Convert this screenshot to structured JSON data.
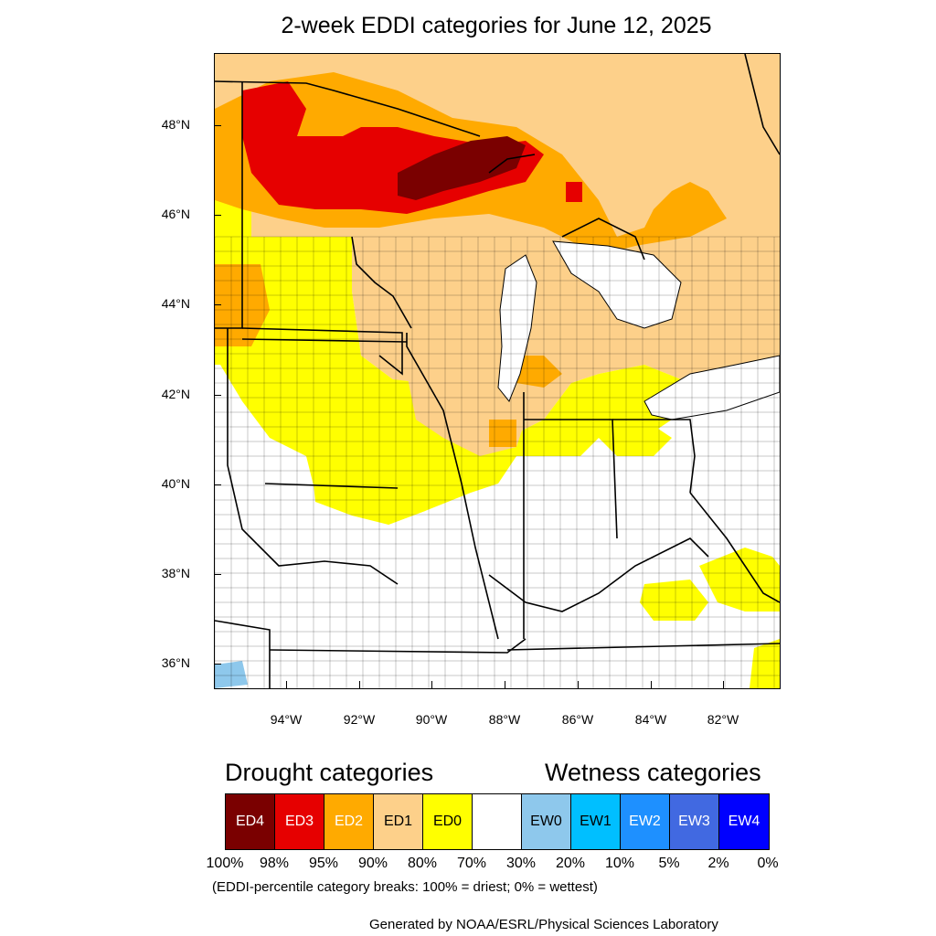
{
  "title": "2-week EDDI categories for June 12, 2025",
  "map": {
    "lat_ticks": [
      "48°N",
      "46°N",
      "44°N",
      "42°N",
      "40°N",
      "38°N",
      "36°N"
    ],
    "lon_ticks": [
      "94°W",
      "92°W",
      "90°W",
      "88°W",
      "86°W",
      "84°W",
      "82°W"
    ],
    "lat_range": [
      35.5,
      49.6
    ],
    "lon_range": [
      -96.0,
      -80.5
    ],
    "colors": {
      "ED4": "#7a0000",
      "ED3": "#e60000",
      "ED2": "#ffaa00",
      "ED1": "#fdd08a",
      "ED0": "#ffff00",
      "none": "#ffffff",
      "EW0": "#8ec8ec",
      "water": "#ffffff"
    }
  },
  "legend": {
    "drought_heading": "Drought categories",
    "wetness_heading": "Wetness categories",
    "categories": [
      {
        "label": "ED4",
        "color": "#7a0000",
        "text_color": "#ffffff"
      },
      {
        "label": "ED3",
        "color": "#e60000",
        "text_color": "#ffffff"
      },
      {
        "label": "ED2",
        "color": "#ffaa00",
        "text_color": "#ffffff"
      },
      {
        "label": "ED1",
        "color": "#fdd08a",
        "text_color": "#000000"
      },
      {
        "label": "ED0",
        "color": "#ffff00",
        "text_color": "#000000"
      },
      {
        "label": "",
        "color": "#ffffff",
        "text_color": "#000000"
      },
      {
        "label": "EW0",
        "color": "#8ec8ec",
        "text_color": "#000000"
      },
      {
        "label": "EW1",
        "color": "#00bfff",
        "text_color": "#000000"
      },
      {
        "label": "EW2",
        "color": "#1e90ff",
        "text_color": "#ffffff"
      },
      {
        "label": "EW3",
        "color": "#4169e1",
        "text_color": "#ffffff"
      },
      {
        "label": "EW4",
        "color": "#0000ff",
        "text_color": "#ffffff"
      }
    ],
    "breaks": [
      "100%",
      "98%",
      "95%",
      "90%",
      "80%",
      "70%",
      "30%",
      "20%",
      "10%",
      "5%",
      "2%",
      "0%"
    ],
    "note": "(EDDI-percentile category breaks: 100% = driest; 0% = wettest)"
  },
  "credit": "Generated by NOAA/ESRL/Physical Sciences Laboratory"
}
